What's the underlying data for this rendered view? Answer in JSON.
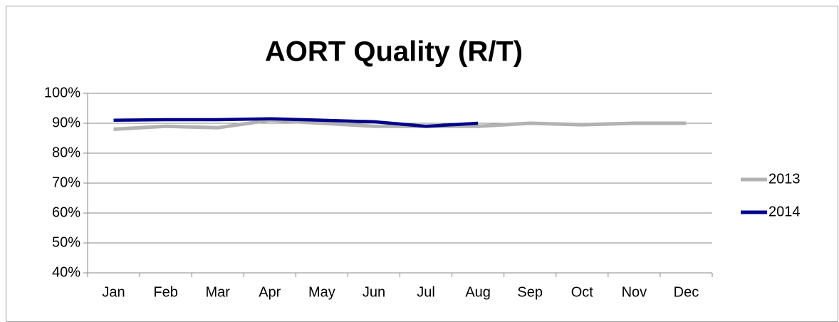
{
  "chart_data": {
    "type": "line",
    "title": "AORT Quality (R/T)",
    "categories": [
      "Jan",
      "Feb",
      "Mar",
      "Apr",
      "May",
      "Jun",
      "Jul",
      "Aug",
      "Sep",
      "Oct",
      "Nov",
      "Dec"
    ],
    "series": [
      {
        "name": "2013",
        "color": "#b2b2b2",
        "values": [
          88,
          89,
          88.5,
          91,
          90,
          89,
          89,
          89,
          90,
          89.5,
          90,
          90
        ]
      },
      {
        "name": "2014",
        "color": "#00008b",
        "values": [
          91,
          91.2,
          91.2,
          91.5,
          91,
          90.5,
          89,
          90,
          null,
          null,
          null,
          null
        ]
      }
    ],
    "ylim": [
      40,
      100
    ],
    "yticks": [
      {
        "value": 40,
        "label": "40%"
      },
      {
        "value": 50,
        "label": "50%"
      },
      {
        "value": 60,
        "label": "60%"
      },
      {
        "value": 70,
        "label": "70%"
      },
      {
        "value": 80,
        "label": "80%"
      },
      {
        "value": 90,
        "label": "90%"
      },
      {
        "value": 100,
        "label": "100%"
      }
    ],
    "grid": true,
    "legend": "right"
  }
}
